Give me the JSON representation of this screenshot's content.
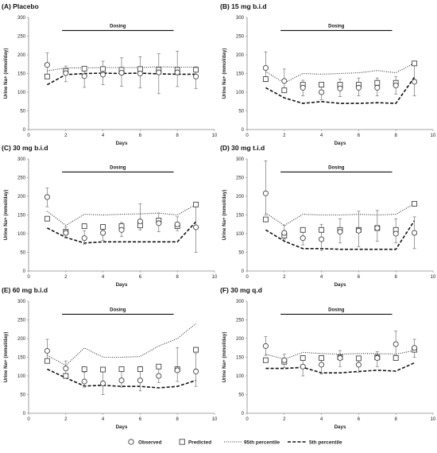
{
  "legend": {
    "observed": "Observed",
    "predicted": "Predicted",
    "p95": "95th percentile",
    "p5": "5th percentile"
  },
  "chart_data": [
    {
      "type": "line",
      "title": "(A) Placebo",
      "xlabel": "Days",
      "ylabel": "Urine Na+ (mmol/day)",
      "xlim": [
        0,
        10
      ],
      "ylim": [
        0,
        300
      ],
      "xticks": [
        0,
        2,
        4,
        6,
        8,
        10
      ],
      "yticks": [
        0,
        50,
        100,
        150,
        200,
        250,
        300
      ],
      "dosing": {
        "label": "Dosing",
        "start": 1.8,
        "end": 7.8,
        "y": 265
      },
      "observed": {
        "x": [
          1,
          2,
          3,
          4,
          5,
          6,
          7,
          8,
          9
        ],
        "y": [
          173,
          151,
          143,
          147,
          152,
          150,
          153,
          153,
          142
        ],
        "lo": [
          140,
          128,
          113,
          120,
          116,
          112,
          96,
          115,
          110
        ],
        "hi": [
          205,
          170,
          166,
          183,
          192,
          195,
          203,
          210,
          168
        ]
      },
      "predicted": {
        "x": [
          1,
          2,
          3,
          4,
          5,
          6,
          7,
          8,
          9
        ],
        "y": [
          142,
          157,
          163,
          162,
          160,
          162,
          160,
          160,
          160
        ]
      },
      "p95": {
        "x": [
          1,
          2,
          3,
          4,
          5,
          6,
          7,
          8,
          9
        ],
        "y": [
          157,
          165,
          165,
          166,
          166,
          166,
          168,
          167,
          167
        ]
      },
      "p5": {
        "x": [
          1,
          2,
          3,
          4,
          5,
          6,
          7,
          8,
          9
        ],
        "y": [
          120,
          147,
          150,
          151,
          150,
          151,
          149,
          148,
          148
        ]
      }
    },
    {
      "type": "line",
      "title": "(B) 15 mg b.i.d",
      "xlabel": "Days",
      "ylabel": "Urine Na+ (mmol/day)",
      "xlim": [
        0,
        10
      ],
      "ylim": [
        0,
        300
      ],
      "xticks": [
        0,
        2,
        4,
        6,
        8,
        10
      ],
      "yticks": [
        0,
        50,
        100,
        150,
        200,
        250,
        300
      ],
      "dosing": {
        "label": "Dosing",
        "start": 1.8,
        "end": 7.8,
        "y": 265
      },
      "observed": {
        "x": [
          1,
          2,
          3,
          4,
          5,
          6,
          7,
          8,
          9
        ],
        "y": [
          165,
          130,
          112,
          100,
          110,
          112,
          112,
          118,
          128
        ],
        "lo": [
          128,
          108,
          90,
          80,
          88,
          90,
          90,
          95,
          90
        ],
        "hi": [
          208,
          162,
          132,
          122,
          135,
          138,
          138,
          142,
          175
        ]
      },
      "predicted": {
        "x": [
          1,
          2,
          3,
          4,
          5,
          6,
          7,
          8,
          9
        ],
        "y": [
          135,
          105,
          120,
          120,
          120,
          120,
          125,
          125,
          177
        ]
      },
      "p95": {
        "x": [
          1,
          2,
          3,
          4,
          5,
          6,
          7,
          8,
          9
        ],
        "y": [
          155,
          125,
          150,
          148,
          150,
          152,
          158,
          152,
          178
        ]
      },
      "p5": {
        "x": [
          1,
          2,
          3,
          4,
          5,
          6,
          7,
          8,
          9
        ],
        "y": [
          112,
          85,
          70,
          75,
          70,
          70,
          72,
          70,
          140
        ]
      }
    },
    {
      "type": "line",
      "title": "(C) 30 mg b.i.d",
      "xlabel": "Days",
      "ylabel": "Urine Na+ (mmol/day)",
      "xlim": [
        0,
        10
      ],
      "ylim": [
        0,
        300
      ],
      "xticks": [
        0,
        2,
        4,
        6,
        8,
        10
      ],
      "yticks": [
        0,
        50,
        100,
        150,
        200,
        250,
        300
      ],
      "dosing": {
        "label": "Dosing",
        "start": 1.8,
        "end": 7.8,
        "y": 265
      },
      "observed": {
        "x": [
          1,
          2,
          3,
          4,
          5,
          6,
          7,
          8,
          9
        ],
        "y": [
          198,
          102,
          88,
          102,
          110,
          133,
          128,
          125,
          117
        ],
        "lo": [
          172,
          88,
          72,
          82,
          92,
          110,
          105,
          108,
          50
        ],
        "hi": [
          222,
          118,
          108,
          122,
          130,
          180,
          155,
          145,
          178
        ]
      },
      "predicted": {
        "x": [
          1,
          2,
          3,
          4,
          5,
          6,
          7,
          8,
          9
        ],
        "y": [
          140,
          105,
          120,
          118,
          120,
          122,
          135,
          120,
          178
        ]
      },
      "p95": {
        "x": [
          1,
          2,
          3,
          4,
          5,
          6,
          7,
          8,
          9
        ],
        "y": [
          160,
          122,
          152,
          150,
          152,
          153,
          155,
          150,
          178
        ]
      },
      "p5": {
        "x": [
          1,
          2,
          3,
          4,
          5,
          6,
          7,
          8,
          9
        ],
        "y": [
          115,
          90,
          75,
          78,
          78,
          78,
          78,
          78,
          132
        ]
      }
    },
    {
      "type": "line",
      "title": "(D) 30 mg t.i.d",
      "xlabel": "Days",
      "ylabel": "Urine Na+ (mmol/day)",
      "xlim": [
        0,
        10
      ],
      "ylim": [
        0,
        300
      ],
      "xticks": [
        0,
        2,
        4,
        6,
        8,
        10
      ],
      "yticks": [
        0,
        50,
        100,
        150,
        200,
        250,
        300
      ],
      "dosing": {
        "label": "Dosing",
        "start": 1.8,
        "end": 7.8,
        "y": 265
      },
      "observed": {
        "x": [
          1,
          2,
          3,
          4,
          5,
          6,
          7,
          8,
          9
        ],
        "y": [
          208,
          102,
          88,
          85,
          105,
          108,
          115,
          100,
          102
        ],
        "lo": [
          150,
          85,
          70,
          55,
          75,
          65,
          80,
          75,
          60
        ],
        "hi": [
          295,
          122,
          108,
          125,
          140,
          160,
          162,
          140,
          145
        ]
      },
      "predicted": {
        "x": [
          1,
          2,
          3,
          4,
          5,
          6,
          7,
          8,
          9
        ],
        "y": [
          138,
          95,
          110,
          110,
          110,
          110,
          115,
          110,
          180
        ]
      },
      "p95": {
        "x": [
          1,
          2,
          3,
          4,
          5,
          6,
          7,
          8,
          9
        ],
        "y": [
          155,
          122,
          152,
          150,
          150,
          152,
          150,
          152,
          180
        ]
      },
      "p5": {
        "x": [
          1,
          2,
          3,
          4,
          5,
          6,
          7,
          8,
          9
        ],
        "y": [
          110,
          80,
          60,
          60,
          58,
          58,
          58,
          58,
          135
        ]
      }
    },
    {
      "type": "line",
      "title": "(E) 60 mg b.i.d",
      "xlabel": "Days",
      "ylabel": "Urine Na+ (mmol/day)",
      "xlim": [
        0,
        10
      ],
      "ylim": [
        0,
        300
      ],
      "xticks": [
        0,
        2,
        4,
        6,
        8,
        10
      ],
      "yticks": [
        0,
        50,
        100,
        150,
        200,
        250,
        300
      ],
      "dosing": {
        "label": "Dosing",
        "start": 1.8,
        "end": 7.8,
        "y": 265
      },
      "observed": {
        "x": [
          1,
          2,
          3,
          4,
          5,
          6,
          7,
          8,
          9
        ],
        "y": [
          167,
          120,
          85,
          80,
          88,
          88,
          100,
          115,
          112
        ],
        "lo": [
          140,
          105,
          70,
          50,
          70,
          60,
          82,
          85,
          72
        ],
        "hi": [
          198,
          140,
          110,
          115,
          115,
          125,
          120,
          175,
          160
        ]
      },
      "predicted": {
        "x": [
          1,
          2,
          3,
          4,
          5,
          6,
          7,
          8,
          9
        ],
        "y": [
          140,
          100,
          118,
          117,
          118,
          118,
          125,
          118,
          170
        ]
      },
      "p95": {
        "x": [
          1,
          2,
          3,
          4,
          5,
          6,
          7,
          8,
          9
        ],
        "y": [
          155,
          128,
          175,
          150,
          150,
          152,
          180,
          200,
          240
        ]
      },
      "p5": {
        "x": [
          1,
          2,
          3,
          4,
          5,
          6,
          7,
          8,
          9
        ],
        "y": [
          118,
          95,
          73,
          75,
          72,
          72,
          68,
          72,
          88
        ]
      }
    },
    {
      "type": "line",
      "title": "(F) 30 mg q.d",
      "xlabel": "Days",
      "ylabel": "Urine Na+ (mmol/day)",
      "xlim": [
        0,
        10
      ],
      "ylim": [
        0,
        300
      ],
      "xticks": [
        0,
        2,
        4,
        6,
        8,
        10
      ],
      "yticks": [
        0,
        50,
        100,
        150,
        200,
        250,
        300
      ],
      "dosing": {
        "label": "Dosing",
        "start": 1.8,
        "end": 7.8,
        "y": 265
      },
      "observed": {
        "x": [
          1,
          2,
          3,
          4,
          5,
          6,
          7,
          8,
          9
        ],
        "y": [
          180,
          142,
          125,
          130,
          148,
          130,
          148,
          185,
          175
        ],
        "lo": [
          155,
          122,
          100,
          105,
          125,
          110,
          125,
          150,
          150
        ],
        "hi": [
          205,
          158,
          145,
          152,
          168,
          150,
          165,
          220,
          198
        ]
      },
      "predicted": {
        "x": [
          1,
          2,
          3,
          4,
          5,
          6,
          7,
          8,
          9
        ],
        "y": [
          142,
          138,
          148,
          148,
          150,
          147,
          150,
          148,
          170
        ]
      },
      "p95": {
        "x": [
          1,
          2,
          3,
          4,
          5,
          6,
          7,
          8,
          9
        ],
        "y": [
          158,
          145,
          163,
          160,
          158,
          160,
          160,
          158,
          168
        ]
      },
      "p5": {
        "x": [
          1,
          2,
          3,
          4,
          5,
          6,
          7,
          8,
          9
        ],
        "y": [
          120,
          120,
          123,
          108,
          108,
          112,
          115,
          113,
          135
        ]
      }
    }
  ]
}
